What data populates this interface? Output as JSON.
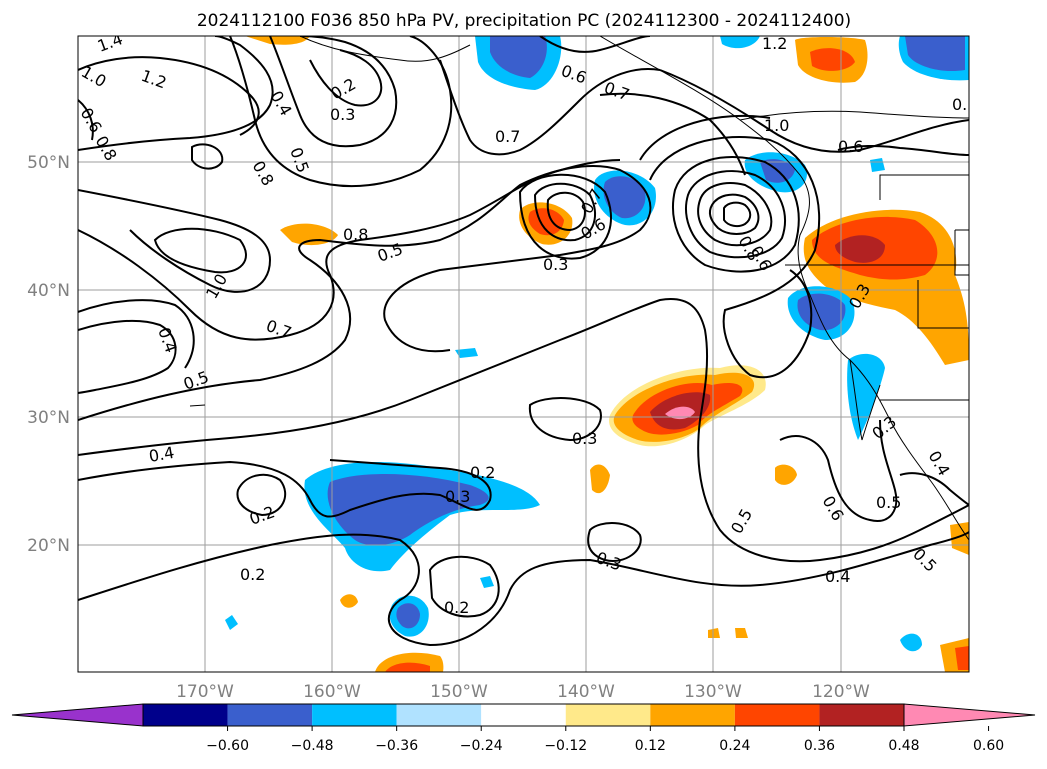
{
  "title": "2024112100 F036 850 hPa PV, precipitation PC (2024112300 - 2024112400)",
  "lat_labels": [
    "50°N",
    "40°N",
    "30°N",
    "20°N"
  ],
  "lon_labels": [
    "170°W",
    "160°W",
    "150°W",
    "140°W",
    "130°W",
    "120°W"
  ],
  "contour_labels": [
    "1.4",
    "1.2",
    "1.0",
    "0.6",
    "0.8",
    "0.4",
    "0.2",
    "0.3",
    "0.5",
    "0.8",
    "0.6",
    "0.7",
    "1.2",
    "1.0",
    "0.6",
    "0.7",
    "0.5",
    "0.8",
    "0.5",
    "0.3",
    "0.7",
    "0.6",
    "0.8",
    "0.6",
    "1.0",
    "0.7",
    "0.4",
    "0.3",
    "0.5",
    "0.4",
    "0.3",
    "0.2",
    "0.3",
    "0.2",
    "0.2",
    "0.3",
    "0.2",
    "0.5",
    "0.6",
    "0.4",
    "0.5",
    "0.5",
    "0.4",
    "0.3"
  ],
  "colorbar": {
    "ticks": [
      "−0.60",
      "−0.48",
      "−0.36",
      "−0.24",
      "−0.12",
      "0.12",
      "0.24",
      "0.36",
      "0.48",
      "0.60"
    ],
    "colors": [
      "#9932cc",
      "#00008b",
      "#3a5fcd",
      "#00bfff",
      "#b0e2ff",
      "#ffffff",
      "#ffe98a",
      "#ffa500",
      "#ff4500",
      "#b22222",
      "#ff89b3"
    ]
  }
}
